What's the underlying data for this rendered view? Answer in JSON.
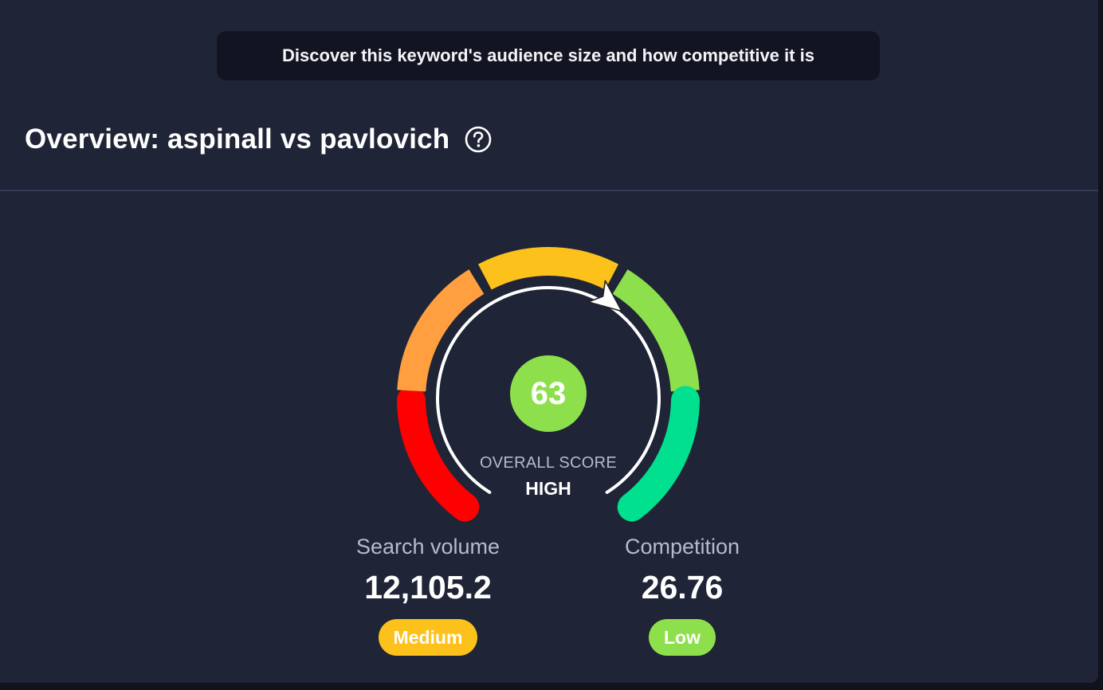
{
  "banner": {
    "text": "Discover this keyword's audience size and how competitive it is"
  },
  "overview": {
    "title": "Overview: aspinall vs pavlovich",
    "help_icon": "question-circle-icon"
  },
  "gauge": {
    "score": "63",
    "score_value": 63,
    "caption": "OVERALL SCORE",
    "level": "HIGH",
    "segment_colors": [
      "#ff0000",
      "#ff9f40",
      "#fcc21b",
      "#8de04b",
      "#00e08f"
    ],
    "needle_color": "#ffffff",
    "score_color": "#8de04b"
  },
  "metrics": {
    "search_volume": {
      "label": "Search volume",
      "value": "12,105.2",
      "badge": "Medium",
      "badge_color": "#fcc21b"
    },
    "competition": {
      "label": "Competition",
      "value": "26.76",
      "badge": "Low",
      "badge_color": "#8de04b"
    }
  }
}
